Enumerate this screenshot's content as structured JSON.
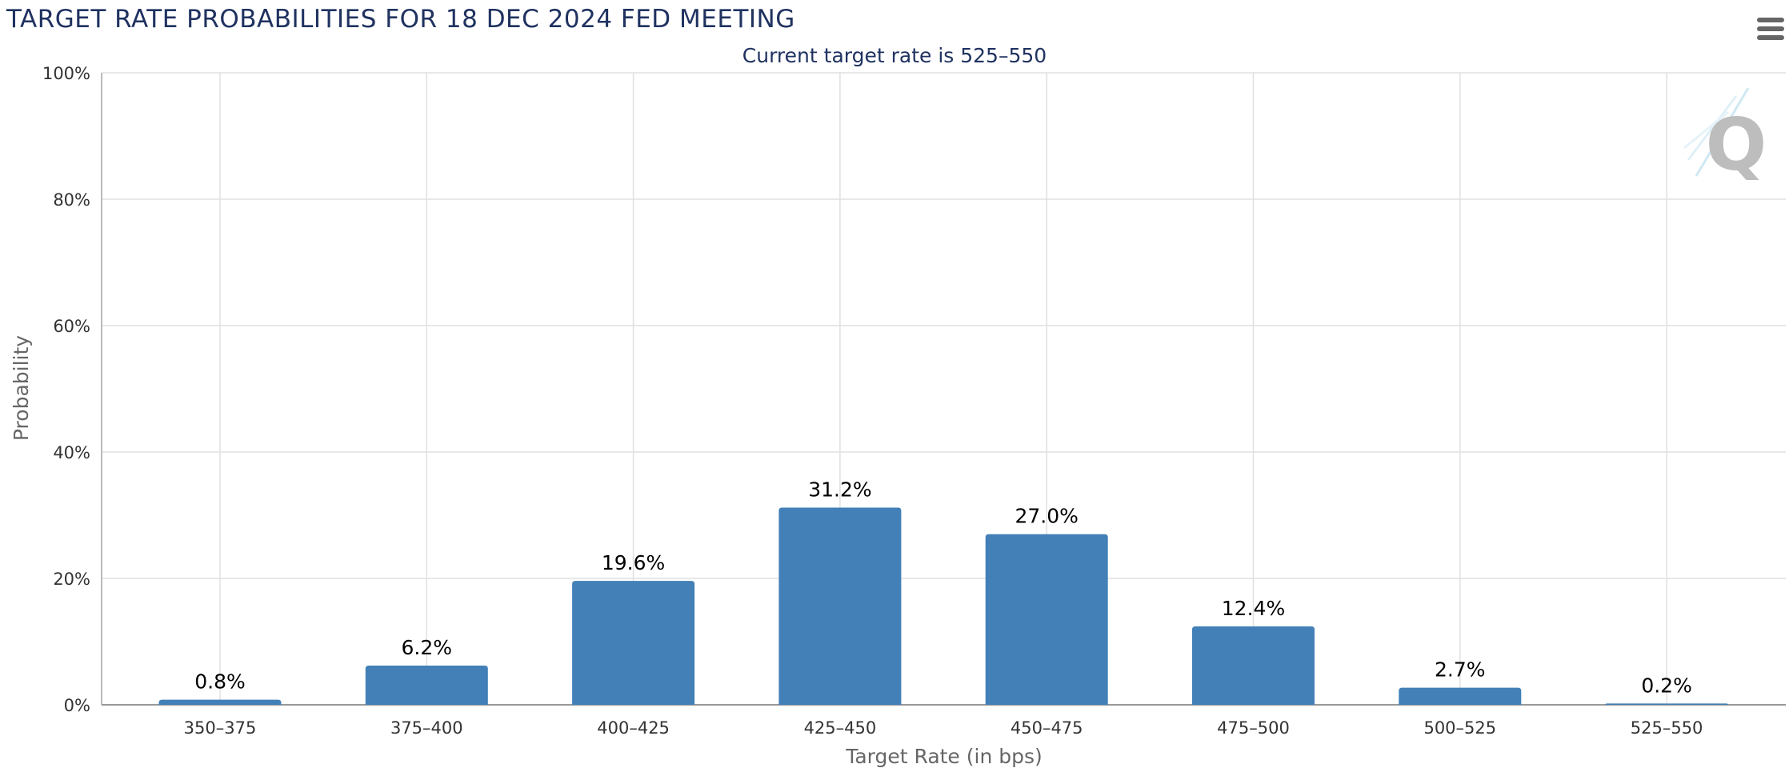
{
  "header": {
    "title": "TARGET RATE PROBABILITIES FOR 18 DEC 2024 FED MEETING",
    "subtitle": "Current target rate is 525–550",
    "menu_icon": "hamburger-menu-icon"
  },
  "watermark_icon": "q-logo-icon",
  "colors": {
    "bar": "#4280b7",
    "grid": "#e0e0e0",
    "title": "#1f3260",
    "axis": "#999999"
  },
  "chart_data": {
    "type": "bar",
    "title": "TARGET RATE PROBABILITIES FOR 18 DEC 2024 FED MEETING",
    "subtitle": "Current target rate is 525–550",
    "xlabel": "Target Rate (in bps)",
    "ylabel": "Probability",
    "categories": [
      "350–375",
      "375–400",
      "400–425",
      "425–450",
      "450–475",
      "475–500",
      "500–525",
      "525–550"
    ],
    "values": [
      0.8,
      6.2,
      19.6,
      31.2,
      27.0,
      12.4,
      2.7,
      0.2
    ],
    "data_labels": [
      "0.8%",
      "6.2%",
      "19.6%",
      "31.2%",
      "27.0%",
      "12.4%",
      "2.7%",
      "0.2%"
    ],
    "ylim": [
      0,
      100
    ],
    "yticks": [
      0,
      20,
      40,
      60,
      80,
      100
    ],
    "ytick_labels": [
      "0%",
      "20%",
      "40%",
      "60%",
      "80%",
      "100%"
    ],
    "grid": true,
    "legend": "none"
  }
}
